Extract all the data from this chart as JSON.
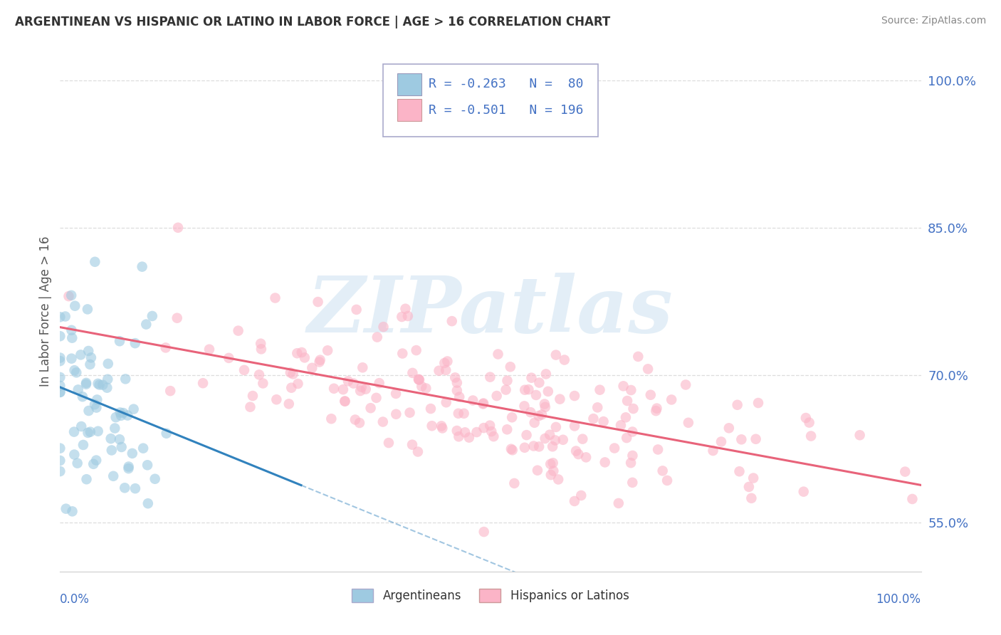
{
  "title": "ARGENTINEAN VS HISPANIC OR LATINO IN LABOR FORCE | AGE > 16 CORRELATION CHART",
  "source": "Source: ZipAtlas.com",
  "ylabel": "In Labor Force | Age > 16",
  "watermark": "ZIPatlas",
  "blue_color": "#9ecae1",
  "pink_color": "#fbb4c7",
  "blue_line_color": "#3182bd",
  "pink_line_color": "#e8637a",
  "bg_color": "#ffffff",
  "grid_color": "#dddddd",
  "n_blue": 80,
  "n_pink": 196,
  "r_blue": -0.263,
  "r_pink": -0.501,
  "xmin": 0.0,
  "xmax": 1.0,
  "ymin": 0.5,
  "ymax": 1.03,
  "yticks": [
    0.55,
    0.7,
    0.85,
    1.0
  ],
  "ytick_labels": [
    "55.0%",
    "70.0%",
    "85.0%",
    "100.0%"
  ],
  "legend_text_color": "#4472c4",
  "legend_r_color": "#4472c4",
  "legend_n_color": "#4472c4",
  "title_color": "#333333",
  "source_color": "#888888",
  "ylabel_color": "#555555"
}
